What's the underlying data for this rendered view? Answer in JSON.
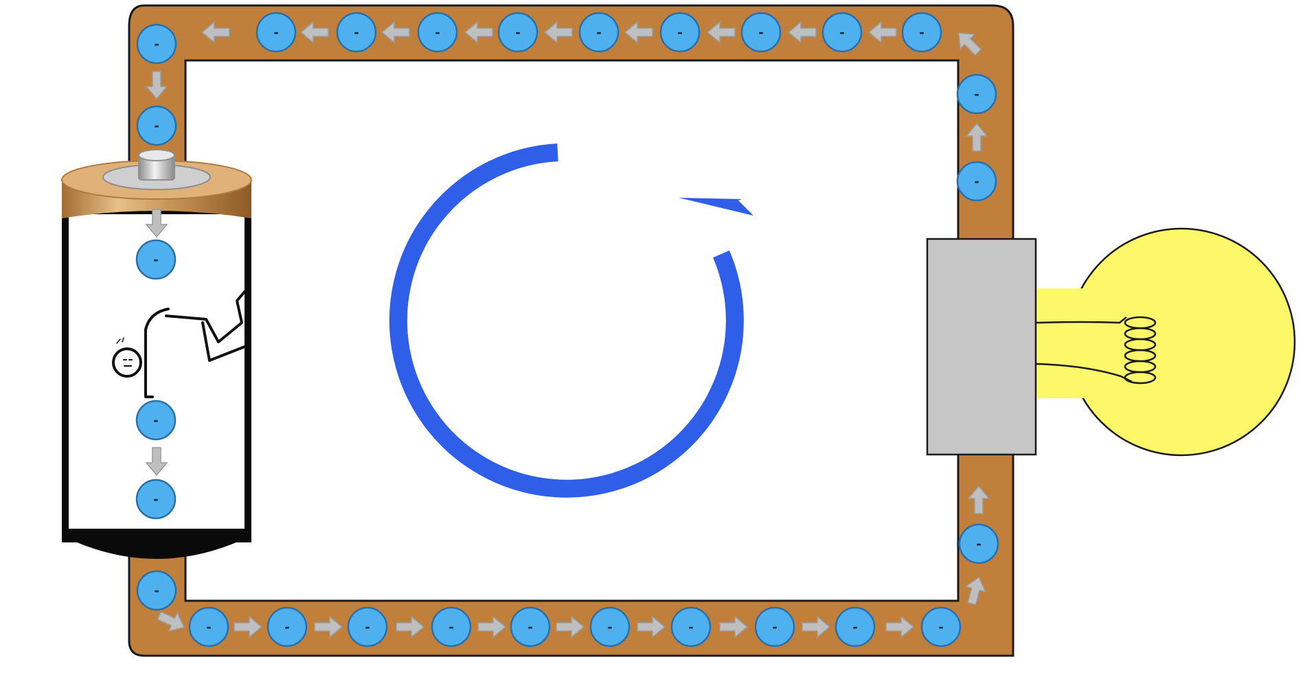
{
  "diagram": {
    "kind": "simple electric circuit: electron flow",
    "colors": {
      "wire": "#c0803c",
      "wire_outline": "#1a1a1a",
      "electron": "#4fb0ef",
      "electron_outline": "#2a6fa8",
      "arrow": "#bfbfbf",
      "flow_cycle": "#2f5fe8",
      "bulb_glass": "#fdf86a",
      "bulb_base": "#c6c6c6",
      "battery_cap": "#c99a5b",
      "battery_terminal": "#cfcfcf",
      "battery_body": "#0a0a0a"
    },
    "electron_label": "-",
    "icons": {
      "battery": "battery-icon",
      "light_bulb": "light-bulb-icon",
      "stick_figure": "stick-figure-pushing-icon",
      "cycle_arrow": "circular-arrow-icon",
      "flow_arrow": "arrow-icon"
    },
    "flow_direction": "counter-clockwise"
  }
}
